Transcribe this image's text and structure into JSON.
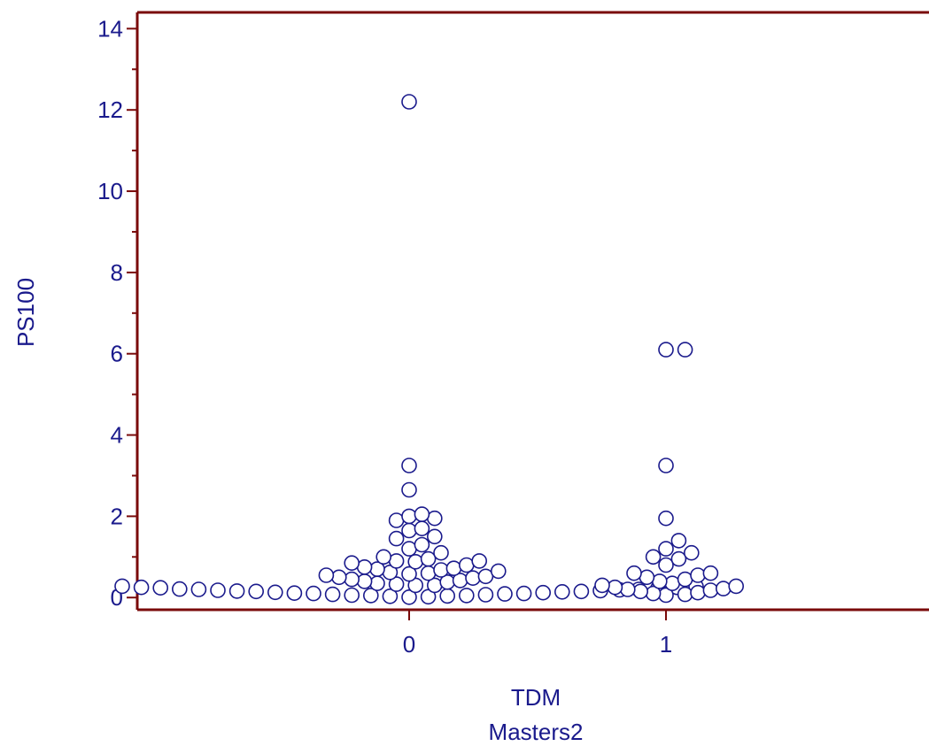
{
  "chart_data": {
    "type": "scatter",
    "xlabel": "TDM",
    "xlabel_sub": "Masters2",
    "ylabel": "PS100",
    "categories": [
      "0",
      "1"
    ],
    "ylim": [
      -0.3,
      14.4
    ],
    "y_ticks": [
      "0",
      "2",
      "4",
      "6",
      "8",
      "10",
      "12",
      "14"
    ],
    "y_tick_values": [
      0,
      2,
      4,
      6,
      8,
      10,
      12,
      14
    ],
    "grid": false,
    "colors": {
      "axis": "#7a0a0a",
      "marker": "#1a1a8c",
      "text": "#1a1a8c"
    },
    "series": [
      {
        "category": "0",
        "values": [
          12.2,
          3.25,
          2.65,
          2.05,
          2.0,
          1.95,
          1.9,
          1.7,
          1.65,
          1.5,
          1.45,
          1.3,
          1.2,
          1.1,
          1.0,
          0.95,
          0.9,
          0.9,
          0.88,
          0.85,
          0.8,
          0.75,
          0.72,
          0.7,
          0.68,
          0.65,
          0.62,
          0.6,
          0.58,
          0.55,
          0.52,
          0.5,
          0.48,
          0.45,
          0.42,
          0.4,
          0.38,
          0.35,
          0.33,
          0.3,
          0.3,
          0.28,
          0.27,
          0.25,
          0.25,
          0.24,
          0.22,
          0.21,
          0.2,
          0.2,
          0.19,
          0.18,
          0.17,
          0.16,
          0.15,
          0.15,
          0.14,
          0.13,
          0.12,
          0.11,
          0.1,
          0.1,
          0.09,
          0.08,
          0.07,
          0.06,
          0.05,
          0.05,
          0.04,
          0.03,
          0.02,
          0.01
        ]
      },
      {
        "category": "1",
        "values": [
          6.1,
          6.1,
          3.25,
          1.95,
          1.4,
          1.2,
          1.1,
          1.0,
          0.95,
          0.8,
          0.6,
          0.6,
          0.55,
          0.5,
          0.45,
          0.4,
          0.35,
          0.3,
          0.28,
          0.25,
          0.22,
          0.2,
          0.18,
          0.15,
          0.12,
          0.1,
          0.08,
          0.06
        ]
      }
    ]
  }
}
